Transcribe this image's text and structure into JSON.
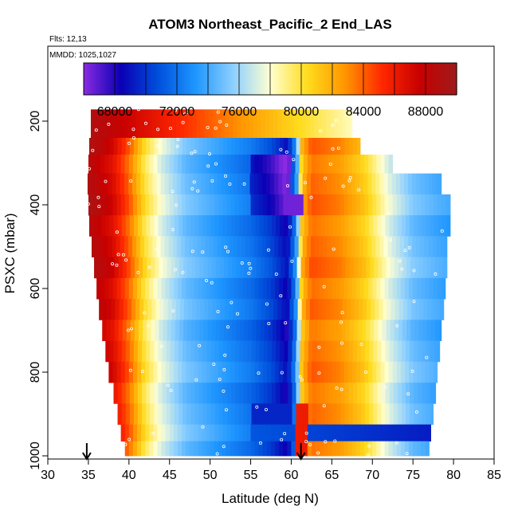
{
  "chart_data": {
    "type": "heatmap",
    "title": "ATOM3 Northeast_Pacific_2 End_LAS",
    "flights_note": "Flts: 12,13",
    "dates_note": "MMDD: 1025,1027",
    "xlabel": "Latitude (deg N)",
    "ylabel": "PSXC (mbar)",
    "xlim": [
      30,
      85
    ],
    "ylim": [
      1000,
      0
    ],
    "x_ticks": [
      "30",
      "35",
      "40",
      "45",
      "50",
      "55",
      "60",
      "65",
      "70",
      "75",
      "80",
      "85"
    ],
    "y_ticks": [
      "200",
      "400",
      "600",
      "800",
      "1000"
    ],
    "colorbar": {
      "min": 66000,
      "max": 90000,
      "tick_labels": [
        "68000",
        "72000",
        "76000",
        "80000",
        "84000",
        "88000"
      ],
      "tick_values": [
        68000,
        72000,
        76000,
        80000,
        84000,
        88000
      ],
      "colors": [
        "#8a2be2",
        "#0a00b4",
        "#0050dc",
        "#1e96ff",
        "#8ccfff",
        "#ffffd2",
        "#ffdc1e",
        "#ff9600",
        "#ff2800",
        "#c80000",
        "#9e1b1b"
      ]
    },
    "layers": [
      {
        "p": 180,
        "start": 35.3,
        "end": 67.5,
        "row": 0
      },
      {
        "p": 220,
        "start": 35.3,
        "end": 67.5,
        "row": 0
      },
      {
        "p": 260,
        "start": 35.1,
        "end": 68.5,
        "row": 1
      },
      {
        "p": 300,
        "start": 35.0,
        "end": 72.5,
        "row": 2
      },
      {
        "p": 350,
        "start": 34.9,
        "end": 78.5,
        "row": 3
      },
      {
        "p": 400,
        "start": 35.0,
        "end": 79.6,
        "row": 4
      },
      {
        "p": 450,
        "start": 35.1,
        "end": 79.6,
        "row": 5
      },
      {
        "p": 500,
        "start": 35.4,
        "end": 79.2,
        "row": 6
      },
      {
        "p": 550,
        "start": 35.7,
        "end": 79.2,
        "row": 7
      },
      {
        "p": 600,
        "start": 36.0,
        "end": 79.0,
        "row": 8
      },
      {
        "p": 650,
        "start": 36.3,
        "end": 78.8,
        "row": 9
      },
      {
        "p": 700,
        "start": 36.7,
        "end": 78.5,
        "row": 10
      },
      {
        "p": 750,
        "start": 37.1,
        "end": 78.3,
        "row": 11
      },
      {
        "p": 800,
        "start": 37.5,
        "end": 78.0,
        "row": 12
      },
      {
        "p": 850,
        "start": 38.1,
        "end": 77.8,
        "row": 13
      },
      {
        "p": 900,
        "start": 38.6,
        "end": 77.5,
        "row": 14
      },
      {
        "p": 950,
        "start": 39.0,
        "end": 77.2,
        "row": 15
      },
      {
        "p": 980,
        "start": 39.5,
        "end": 77.0,
        "row": 16
      }
    ],
    "markers": [
      {
        "lat": 34.8,
        "label": "arrow-left"
      },
      {
        "lat": 61.2,
        "label": "arrow-right"
      }
    ]
  }
}
